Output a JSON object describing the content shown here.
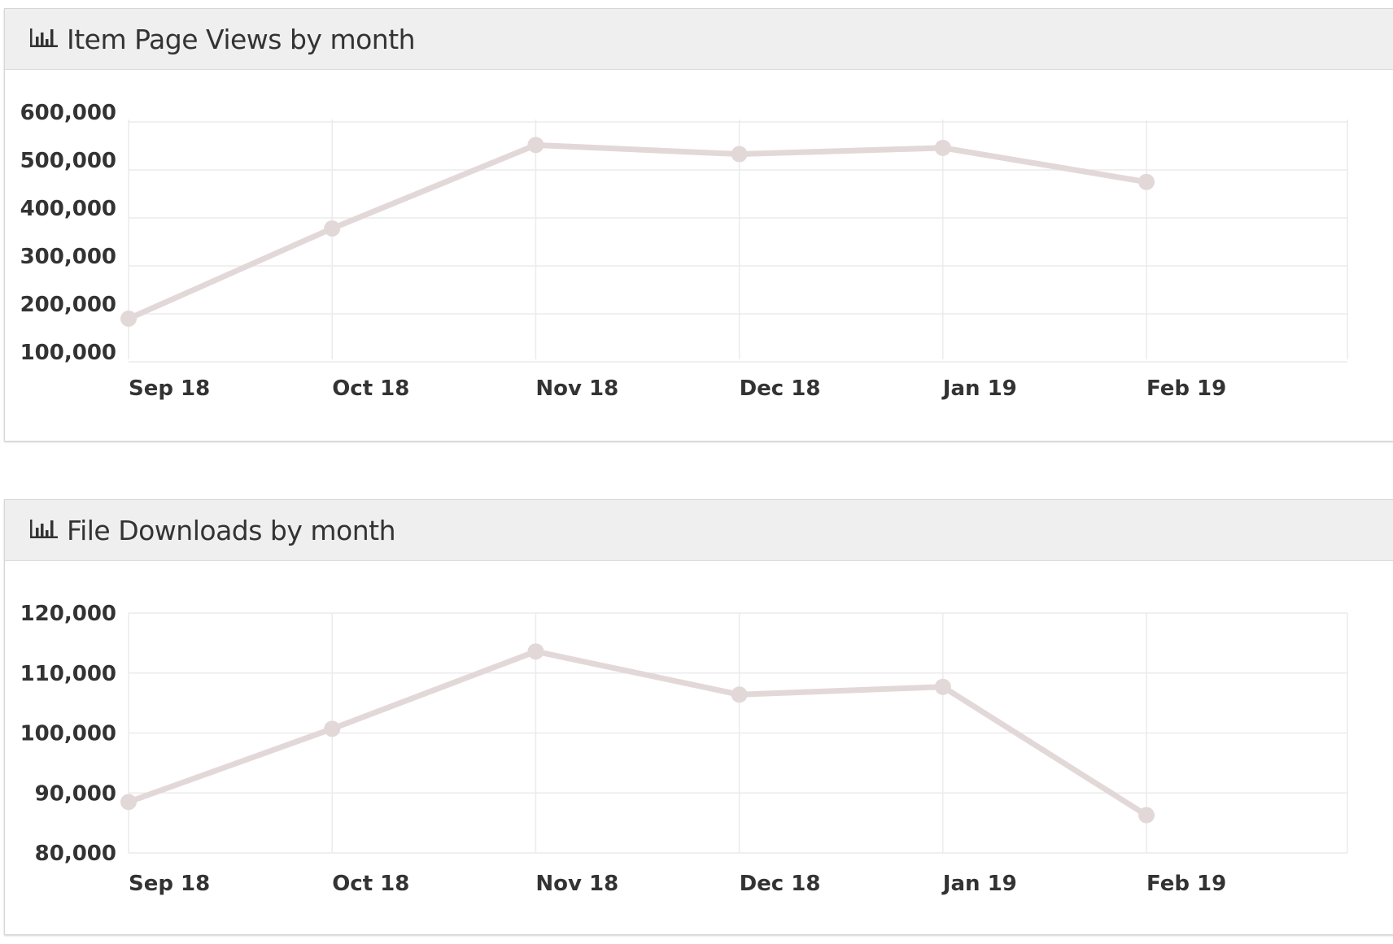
{
  "colors": {
    "line": "#e3d8d8",
    "grid": "#ebebeb",
    "text": "#333333",
    "header_bg": "#efefef"
  },
  "panels": [
    {
      "title": "Item Page Views by month",
      "icon": "bar-chart-icon"
    },
    {
      "title": "File Downloads by month",
      "icon": "bar-chart-icon"
    }
  ],
  "chart_data": [
    {
      "type": "line",
      "title": "Item Page Views by month",
      "categories": [
        "Sep 18",
        "Oct 18",
        "Nov 18",
        "Dec 18",
        "Jan 19",
        "Feb 19"
      ],
      "values": [
        190000,
        378000,
        552000,
        533000,
        546000,
        475000
      ],
      "yticks": [
        100000,
        200000,
        300000,
        400000,
        500000,
        600000
      ],
      "ytick_labels": [
        "100,000",
        "200,000",
        "300,000",
        "400,000",
        "500,000",
        "600,000"
      ],
      "ylim": [
        75000,
        575000
      ],
      "grid": true
    },
    {
      "type": "line",
      "title": "File Downloads by month",
      "categories": [
        "Sep 18",
        "Oct 18",
        "Nov 18",
        "Dec 18",
        "Jan 19",
        "Feb 19"
      ],
      "values": [
        88500,
        100700,
        113600,
        106400,
        107700,
        86300
      ],
      "yticks": [
        80000,
        90000,
        100000,
        110000,
        120000
      ],
      "ytick_labels": [
        "80,000",
        "90,000",
        "100,000",
        "110,000",
        "120,000"
      ],
      "ylim": [
        80000,
        120000
      ],
      "grid": true
    }
  ]
}
